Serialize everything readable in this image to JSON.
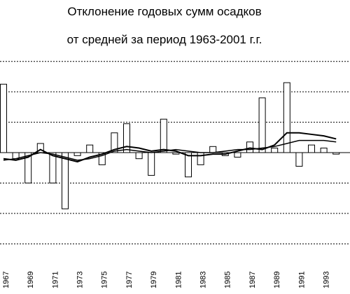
{
  "chart_data": {
    "type": "bar",
    "title": "Отклонение годовых сумм осадков",
    "subtitle": "от средней за период 1963-2001 г.г.",
    "categories": [
      "1967",
      null,
      "1969",
      null,
      "1971",
      null,
      "1973",
      null,
      "1975",
      null,
      "1977",
      null,
      "1979",
      null,
      "1981",
      null,
      "1983",
      null,
      "1985",
      null,
      "1987",
      null,
      "1989",
      null,
      "1991",
      null,
      "1993",
      null
    ],
    "values": [
      225,
      -20,
      -100,
      30,
      -100,
      -185,
      -10,
      25,
      -40,
      65,
      95,
      -20,
      -75,
      110,
      -5,
      -80,
      -40,
      20,
      -10,
      -15,
      35,
      180,
      15,
      230,
      -45,
      25,
      15,
      -5
    ],
    "color": "#ffffff",
    "lines": [
      {
        "color": "#000000",
        "values": [
          -20,
          -25,
          -15,
          10,
          -10,
          -20,
          -30,
          -15,
          -5,
          10,
          20,
          15,
          5,
          10,
          5,
          -10,
          -10,
          -5,
          -5,
          5,
          15,
          10,
          25,
          65,
          65,
          60,
          55,
          45
        ]
      },
      {
        "color": "#000000",
        "values": [
          -25,
          -20,
          -10,
          0,
          -5,
          -15,
          -25,
          -20,
          -10,
          5,
          10,
          5,
          0,
          5,
          10,
          5,
          0,
          0,
          5,
          10,
          10,
          15,
          20,
          30,
          40,
          40,
          40,
          35
        ]
      }
    ],
    "ylim": [
      -320,
      320
    ],
    "yticks": [
      -300,
      -200,
      -100,
      0,
      100,
      200,
      300
    ],
    "grid": true
  }
}
